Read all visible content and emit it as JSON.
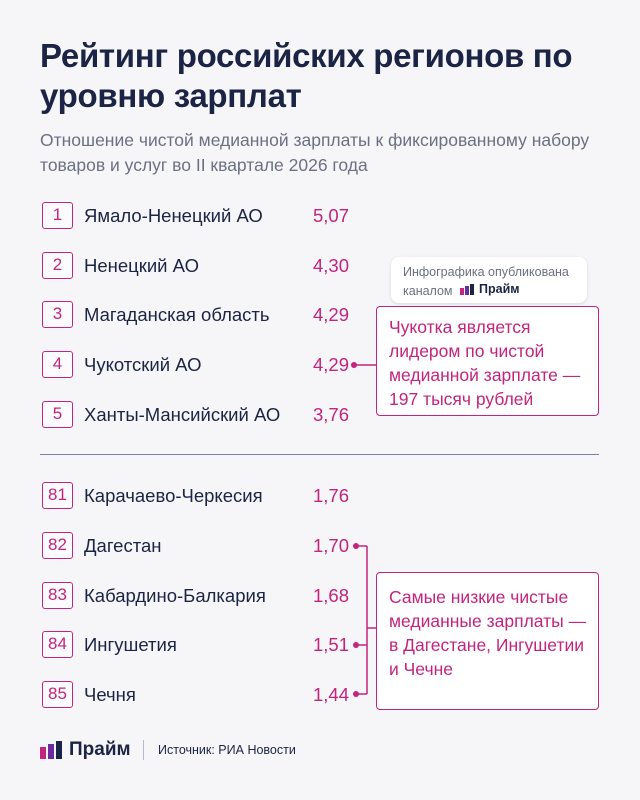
{
  "header": {
    "title": "Рейтинг российских регионов по уровню зарплат",
    "subtitle": "Отношение чистой медианной зарплаты к фиксированному набору товаров и услуг во II квартале 2026 года"
  },
  "top_regions": [
    {
      "rank": "1",
      "region": "Ямало-Ненецкий АО",
      "value": "5,07"
    },
    {
      "rank": "2",
      "region": "Ненецкий АО",
      "value": "4,30"
    },
    {
      "rank": "3",
      "region": "Магаданская область",
      "value": "4,29"
    },
    {
      "rank": "4",
      "region": "Чукотский АО",
      "value": "4,29"
    },
    {
      "rank": "5",
      "region": "Ханты-Мансийский АО",
      "value": "3,76"
    }
  ],
  "bottom_regions": [
    {
      "rank": "81",
      "region": "Карачаево-Черкесия",
      "value": "1,76"
    },
    {
      "rank": "82",
      "region": "Дагестан",
      "value": "1,70"
    },
    {
      "rank": "83",
      "region": "Кабардино-Балкария",
      "value": "1,68"
    },
    {
      "rank": "84",
      "region": "Ингушетия",
      "value": "1,51"
    },
    {
      "rank": "85",
      "region": "Чечня",
      "value": "1,44"
    }
  ],
  "badge": {
    "text": "Инфографика опубликована каналом",
    "brand": "Прайм"
  },
  "callouts": {
    "top": "Чукотка является лидером по чистой медианной зарплате — 197 тысяч рублей",
    "bottom": "Самые низкие чистые медианные зарплаты — в Дагестане, Ингушетии и Чечне"
  },
  "footer": {
    "brand": "Прайм",
    "source": "Источник: РИА Новости"
  },
  "colors": {
    "accent": "#c3247d",
    "text": "#1b2444",
    "muted": "#6b7082",
    "background": "#f6f6f9"
  },
  "icons": [
    "prime-logo-icon"
  ]
}
